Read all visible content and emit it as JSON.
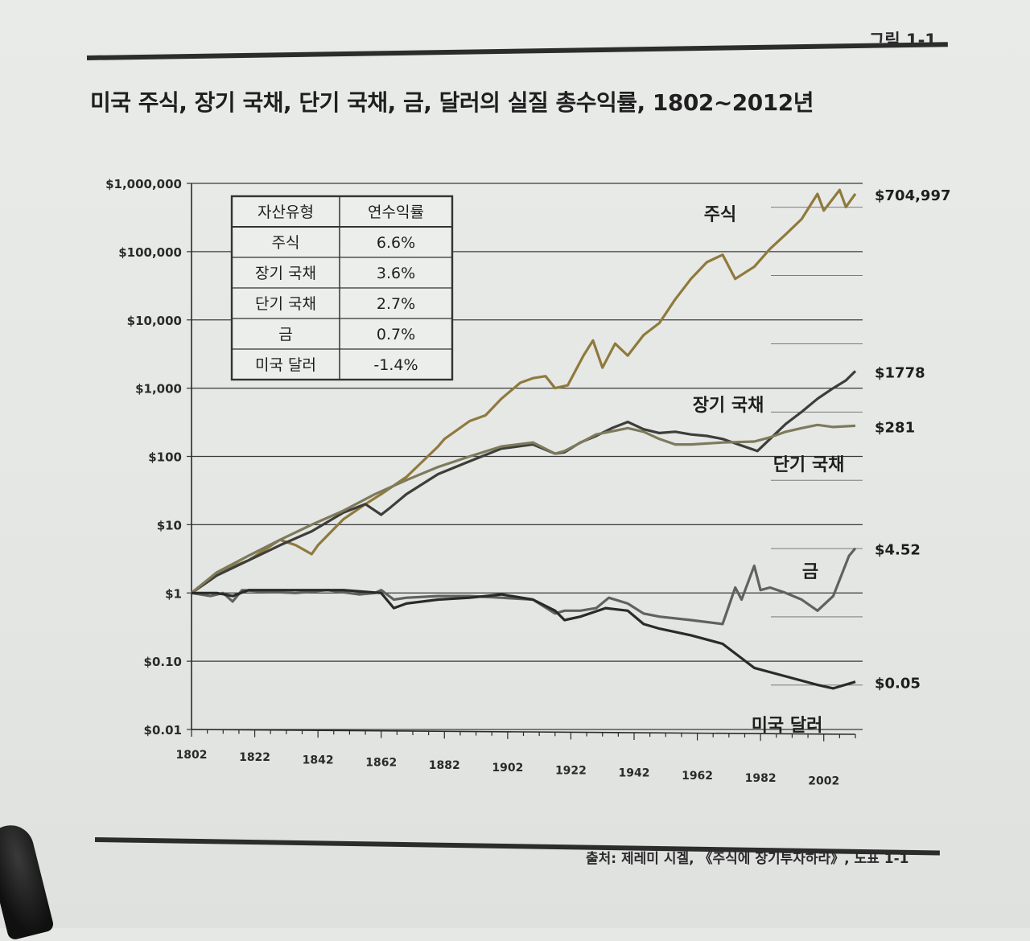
{
  "figure": {
    "label": "그림 1-1",
    "title": "미국 주식, 장기 국채, 단기 국채, 금, 달러의 실질 총수익률, 1802~2012년",
    "source": "출처: 제레미 시겔, 《주식에 장기투자하라》, 도표 1-1"
  },
  "chart_data": {
    "type": "line",
    "title": "미국 주식, 장기 국채, 단기 국채, 금, 달러의 실질 총수익률, 1802~2012년",
    "xlabel": "",
    "ylabel": "",
    "yscale": "log",
    "xlim": [
      1802,
      2012
    ],
    "ylim": [
      0.01,
      1000000
    ],
    "x_ticks": [
      "1802",
      "1822",
      "1842",
      "1862",
      "1882",
      "1902",
      "1922",
      "1942",
      "1962",
      "1982",
      "2002"
    ],
    "y_ticks": [
      "$0.01",
      "$0.10",
      "$1",
      "$10",
      "$100",
      "$1,000",
      "$10,000",
      "$100,000",
      "$1,000,000"
    ],
    "series": [
      {
        "name": "주식",
        "end_label": "$704,997",
        "color": "#8f7a3c",
        "points": [
          [
            1802,
            1
          ],
          [
            1810,
            2
          ],
          [
            1820,
            3
          ],
          [
            1830,
            6
          ],
          [
            1835,
            5
          ],
          [
            1840,
            3.7
          ],
          [
            1842,
            5
          ],
          [
            1850,
            12
          ],
          [
            1857,
            20
          ],
          [
            1862,
            28
          ],
          [
            1870,
            50
          ],
          [
            1880,
            140
          ],
          [
            1882,
            180
          ],
          [
            1890,
            330
          ],
          [
            1895,
            400
          ],
          [
            1900,
            700
          ],
          [
            1906,
            1200
          ],
          [
            1910,
            1400
          ],
          [
            1914,
            1500
          ],
          [
            1917,
            1000
          ],
          [
            1921,
            1100
          ],
          [
            1926,
            3000
          ],
          [
            1929,
            5000
          ],
          [
            1932,
            2000
          ],
          [
            1936,
            4500
          ],
          [
            1940,
            3000
          ],
          [
            1945,
            6000
          ],
          [
            1950,
            9000
          ],
          [
            1955,
            20000
          ],
          [
            1960,
            40000
          ],
          [
            1965,
            70000
          ],
          [
            1970,
            90000
          ],
          [
            1974,
            40000
          ],
          [
            1980,
            60000
          ],
          [
            1985,
            110000
          ],
          [
            1990,
            180000
          ],
          [
            1995,
            300000
          ],
          [
            2000,
            700000
          ],
          [
            2002,
            400000
          ],
          [
            2007,
            800000
          ],
          [
            2009,
            450000
          ],
          [
            2012,
            704997
          ]
        ]
      },
      {
        "name": "장기 국채",
        "end_label": "$1778",
        "color": "#3d3d39",
        "points": [
          [
            1802,
            1
          ],
          [
            1810,
            1.8
          ],
          [
            1820,
            3
          ],
          [
            1830,
            5
          ],
          [
            1840,
            8
          ],
          [
            1850,
            15
          ],
          [
            1857,
            20
          ],
          [
            1862,
            14
          ],
          [
            1865,
            18
          ],
          [
            1870,
            28
          ],
          [
            1880,
            55
          ],
          [
            1890,
            85
          ],
          [
            1900,
            130
          ],
          [
            1910,
            150
          ],
          [
            1917,
            110
          ],
          [
            1920,
            115
          ],
          [
            1925,
            160
          ],
          [
            1930,
            200
          ],
          [
            1935,
            260
          ],
          [
            1940,
            320
          ],
          [
            1945,
            250
          ],
          [
            1950,
            220
          ],
          [
            1955,
            230
          ],
          [
            1960,
            210
          ],
          [
            1965,
            200
          ],
          [
            1970,
            180
          ],
          [
            1975,
            150
          ],
          [
            1981,
            120
          ],
          [
            1985,
            180
          ],
          [
            1990,
            300
          ],
          [
            1995,
            450
          ],
          [
            2000,
            700
          ],
          [
            2005,
            1000
          ],
          [
            2009,
            1300
          ],
          [
            2012,
            1778
          ]
        ]
      },
      {
        "name": "단기 국채",
        "end_label": "$281",
        "color": "#7e7a5c",
        "points": [
          [
            1802,
            1
          ],
          [
            1810,
            2
          ],
          [
            1820,
            3.5
          ],
          [
            1830,
            6
          ],
          [
            1840,
            10
          ],
          [
            1850,
            16
          ],
          [
            1860,
            28
          ],
          [
            1870,
            45
          ],
          [
            1880,
            70
          ],
          [
            1890,
            100
          ],
          [
            1900,
            140
          ],
          [
            1910,
            160
          ],
          [
            1917,
            110
          ],
          [
            1920,
            120
          ],
          [
            1930,
            210
          ],
          [
            1940,
            260
          ],
          [
            1945,
            230
          ],
          [
            1950,
            180
          ],
          [
            1955,
            150
          ],
          [
            1960,
            150
          ],
          [
            1970,
            160
          ],
          [
            1980,
            165
          ],
          [
            1985,
            190
          ],
          [
            1990,
            230
          ],
          [
            1995,
            260
          ],
          [
            2000,
            290
          ],
          [
            2005,
            270
          ],
          [
            2012,
            281
          ]
        ]
      },
      {
        "name": "금",
        "end_label": "$4.52",
        "color": "#5f625d",
        "points": [
          [
            1802,
            1
          ],
          [
            1808,
            0.9
          ],
          [
            1812,
            1
          ],
          [
            1815,
            0.75
          ],
          [
            1818,
            1.1
          ],
          [
            1825,
            1.05
          ],
          [
            1835,
            1
          ],
          [
            1845,
            1.1
          ],
          [
            1855,
            0.95
          ],
          [
            1860,
            1
          ],
          [
            1862,
            1.1
          ],
          [
            1866,
            0.8
          ],
          [
            1870,
            0.85
          ],
          [
            1880,
            0.9
          ],
          [
            1890,
            0.9
          ],
          [
            1900,
            0.85
          ],
          [
            1910,
            0.8
          ],
          [
            1917,
            0.5
          ],
          [
            1920,
            0.55
          ],
          [
            1925,
            0.55
          ],
          [
            1930,
            0.6
          ],
          [
            1934,
            0.85
          ],
          [
            1940,
            0.7
          ],
          [
            1945,
            0.5
          ],
          [
            1950,
            0.45
          ],
          [
            1960,
            0.4
          ],
          [
            1970,
            0.35
          ],
          [
            1974,
            1.2
          ],
          [
            1976,
            0.8
          ],
          [
            1980,
            2.5
          ],
          [
            1982,
            1.1
          ],
          [
            1985,
            1.2
          ],
          [
            1990,
            1
          ],
          [
            1995,
            0.8
          ],
          [
            2000,
            0.55
          ],
          [
            2005,
            0.9
          ],
          [
            2010,
            3.5
          ],
          [
            2012,
            4.52
          ]
        ]
      },
      {
        "name": "미국 달러",
        "end_label": "$0.05",
        "color": "#2a2a28",
        "points": [
          [
            1802,
            1
          ],
          [
            1810,
            1
          ],
          [
            1815,
            0.9
          ],
          [
            1820,
            1.1
          ],
          [
            1830,
            1.1
          ],
          [
            1840,
            1.1
          ],
          [
            1850,
            1.1
          ],
          [
            1862,
            1
          ],
          [
            1866,
            0.6
          ],
          [
            1870,
            0.7
          ],
          [
            1880,
            0.8
          ],
          [
            1890,
            0.85
          ],
          [
            1900,
            0.95
          ],
          [
            1910,
            0.8
          ],
          [
            1917,
            0.55
          ],
          [
            1920,
            0.4
          ],
          [
            1925,
            0.45
          ],
          [
            1933,
            0.6
          ],
          [
            1940,
            0.55
          ],
          [
            1945,
            0.35
          ],
          [
            1950,
            0.3
          ],
          [
            1960,
            0.24
          ],
          [
            1970,
            0.18
          ],
          [
            1980,
            0.08
          ],
          [
            1990,
            0.06
          ],
          [
            2000,
            0.045
          ],
          [
            2005,
            0.04
          ],
          [
            2012,
            0.05
          ]
        ]
      }
    ],
    "series_labels": [
      "주식",
      "장기 국채",
      "단기 국채",
      "금",
      "미국 달러"
    ],
    "table": {
      "headers": [
        "자산유형",
        "연수익률"
      ],
      "rows": [
        [
          "주식",
          "6.6%"
        ],
        [
          "장기 국채",
          "3.6%"
        ],
        [
          "단기 국채",
          "2.7%"
        ],
        [
          "금",
          "0.7%"
        ],
        [
          "미국 달러",
          "-1.4%"
        ]
      ]
    }
  }
}
